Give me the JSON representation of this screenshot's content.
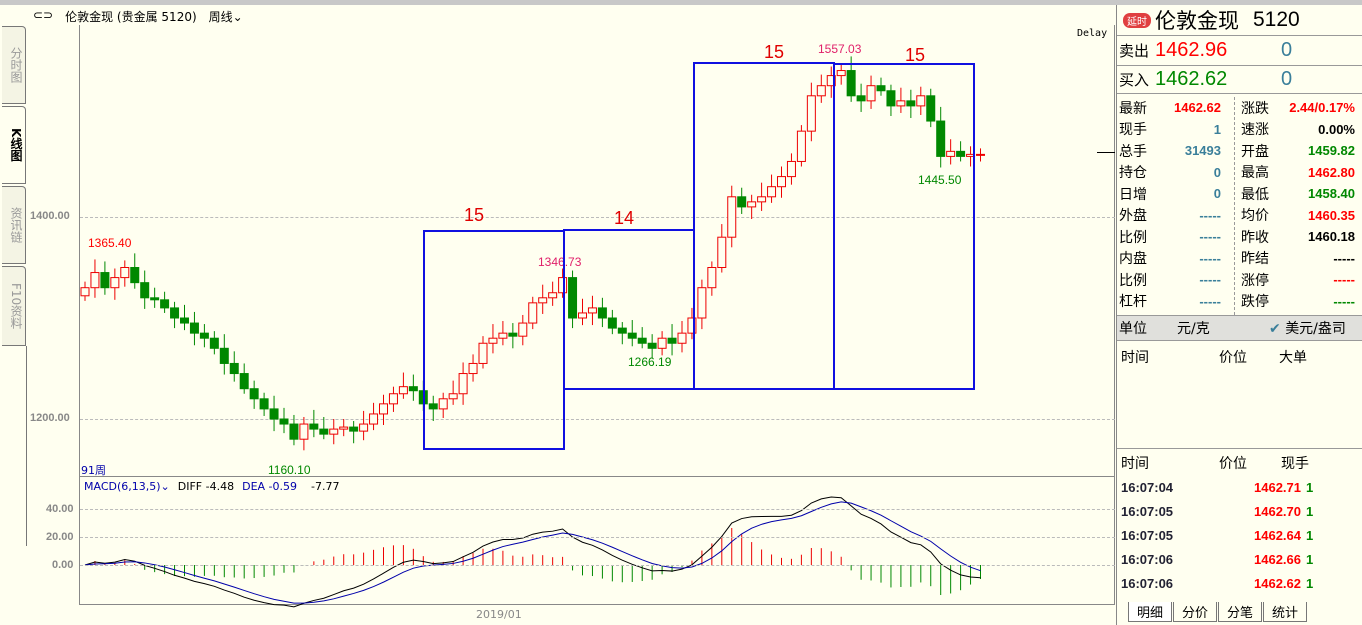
{
  "header": {
    "link_icon": "link-icon",
    "title": "伦敦金现 (贵金属 5120)",
    "period": "周线"
  },
  "side_tabs": [
    "分时图",
    "K线图",
    "资讯链",
    "F10资料"
  ],
  "chart": {
    "delay_label": "Delay",
    "count_label": "91周",
    "x_label": "2019/01",
    "y_ticks": [
      "1400.00",
      "1200.00"
    ],
    "annotations": {
      "high_left": "1365.40",
      "low": "1160.10",
      "mid_high": "1346.73",
      "mid_low": "1266.19",
      "peak": "1557.03",
      "recent_low": "1445.50"
    },
    "box_labels": [
      "15",
      "14",
      "15",
      "15"
    ],
    "macd": {
      "name": "MACD(6,13,5)",
      "diff": "DIFF -4.48",
      "dea": "DEA -0.59",
      "macd": "-7.77",
      "y_ticks": [
        "40.00",
        "20.00",
        "0.00"
      ]
    }
  },
  "chart_data": {
    "type": "candlestick",
    "ylabel": "price",
    "ylim": [
      1140,
      1580
    ],
    "closes": [
      1330,
      1345,
      1330,
      1340,
      1350,
      1335,
      1320,
      1318,
      1310,
      1300,
      1295,
      1285,
      1280,
      1270,
      1255,
      1245,
      1230,
      1220,
      1210,
      1200,
      1195,
      1180,
      1195,
      1190,
      1185,
      1190,
      1192,
      1188,
      1195,
      1205,
      1215,
      1225,
      1232,
      1228,
      1215,
      1210,
      1220,
      1225,
      1245,
      1255,
      1275,
      1280,
      1285,
      1282,
      1295,
      1315,
      1320,
      1325,
      1340,
      1300,
      1305,
      1310,
      1300,
      1290,
      1285,
      1280,
      1275,
      1270,
      1280,
      1275,
      1285,
      1300,
      1330,
      1350,
      1380,
      1420,
      1410,
      1415,
      1420,
      1430,
      1440,
      1455,
      1485,
      1520,
      1530,
      1540,
      1545,
      1520,
      1515,
      1530,
      1525,
      1510,
      1515,
      1510,
      1520,
      1495,
      1460,
      1465,
      1460,
      1462,
      1462
    ]
  },
  "quote": {
    "badge": "延时",
    "name": "伦敦金现",
    "code": "5120",
    "sell_label": "卖出",
    "sell_price": "1462.96",
    "sell_vol": "0",
    "buy_label": "买入",
    "buy_price": "1462.62",
    "buy_vol": "0",
    "left": [
      [
        "最新",
        "1462.62",
        "red"
      ],
      [
        "现手",
        "1",
        "blue"
      ],
      [
        "总手",
        "31493",
        "blue"
      ],
      [
        "持仓",
        "0",
        "blue"
      ],
      [
        "日增",
        "0",
        "blue"
      ],
      [
        "外盘",
        "-----",
        "blue"
      ],
      [
        "比例",
        "-----",
        "blue"
      ],
      [
        "内盘",
        "-----",
        "blue"
      ],
      [
        "比例",
        "-----",
        "blue"
      ],
      [
        "杠杆",
        "-----",
        "blue"
      ]
    ],
    "right": [
      [
        "涨跌",
        "2.44/0.17%",
        "red"
      ],
      [
        "速涨",
        "0.00%",
        "blk"
      ],
      [
        "开盘",
        "1459.82",
        "green"
      ],
      [
        "最高",
        "1462.80",
        "red"
      ],
      [
        "最低",
        "1458.40",
        "green"
      ],
      [
        "均价",
        "1460.35",
        "red"
      ],
      [
        "昨收",
        "1460.18",
        "blk"
      ],
      [
        "昨结",
        "-----",
        "blk"
      ],
      [
        "涨停",
        "-----",
        "red"
      ],
      [
        "跌停",
        "-----",
        "green"
      ]
    ],
    "unit_label": "单位",
    "unit_a": "元/克",
    "unit_b": "美元/盎司",
    "big_headers": [
      "时间",
      "价位",
      "大单"
    ],
    "tick_headers": [
      "时间",
      "价位",
      "现手"
    ],
    "ticks": [
      [
        "16:07:04",
        "1462.71",
        "1"
      ],
      [
        "16:07:05",
        "1462.70",
        "1"
      ],
      [
        "16:07:05",
        "1462.64",
        "1"
      ],
      [
        "16:07:06",
        "1462.66",
        "1"
      ],
      [
        "16:07:06",
        "1462.62",
        "1"
      ]
    ],
    "tabs": [
      "明细",
      "分价",
      "分笔",
      "统计"
    ]
  }
}
